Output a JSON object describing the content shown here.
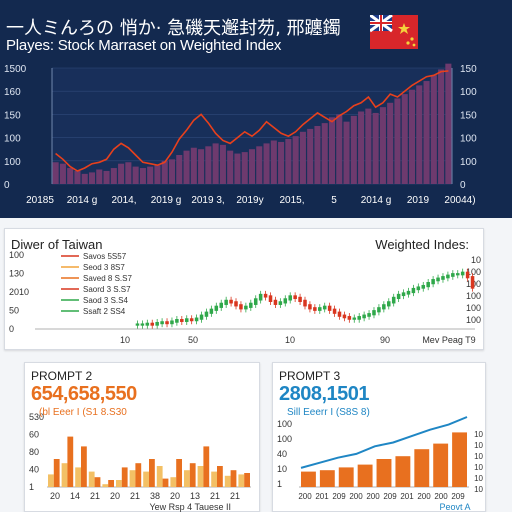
{
  "hero": {
    "title": "一人ミんろの 悄か· 急磯天邂封芴, 邢躔鐲",
    "subtitle": "Playes: Stock Marraset on Weighted Index",
    "axis_left": [
      "1500",
      "160",
      "150",
      "100",
      "100",
      "0"
    ],
    "axis_right": [
      "150",
      "100",
      "150",
      "100",
      "100",
      "0"
    ],
    "x_labels": [
      "20185",
      "2014 g",
      "2014,",
      "2019 g",
      "2019 3,",
      "2019y",
      "2015,",
      "5",
      "2014 g",
      "2019",
      "20044)"
    ]
  },
  "mid": {
    "left_title": "Diwer of Taiwan",
    "right_title": "Weighted Indes:",
    "axis_left": [
      "100",
      "130",
      "2010",
      "50",
      "0"
    ],
    "legend": [
      "Savos 5S57",
      "Seod 3 8S7",
      "Saved 8 S.S7",
      "Saord 3 S.S7",
      "Saod 3 S.S4",
      "Ssaft 2 SS4"
    ],
    "x_labels": [
      "10",
      "50",
      "10",
      "90",
      "Mev Peag T9"
    ],
    "axis_right": [
      "10",
      "100",
      "100",
      "100",
      "100",
      "100"
    ]
  },
  "card_left": {
    "title": "PROMPT 2",
    "number": "654,658,550",
    "sub": "(bl Eeer I (S1 8.S30",
    "axis": [
      "530",
      "60",
      "80",
      "40",
      "1"
    ],
    "x_labels": [
      "20",
      "14",
      "21",
      "20",
      "21",
      "38",
      "20",
      "13",
      "21",
      "21"
    ],
    "footer": "Yew Rsp 4 Tauese II"
  },
  "card_right": {
    "title": "PROMPT 3",
    "number": "2808,1501",
    "sub": "Sill Eeerr I (S8S 8)",
    "axis": [
      "100",
      "100",
      "40",
      "10",
      "1"
    ],
    "x_labels": [
      "200",
      "201",
      "209",
      "200",
      "200",
      "209",
      "201",
      "200",
      "200",
      "209"
    ],
    "footer": "Peovt A",
    "axis_right": [
      "10",
      "10",
      "10",
      "10",
      "10",
      "10"
    ]
  },
  "colors": {
    "navy": "#13294f",
    "red_line": "#e8401c",
    "bar_purple": "#6e3a6e",
    "candle_up": "#2fa84a",
    "candle_down": "#d9361f",
    "orange": "#e8701f",
    "light_orange": "#f3c065",
    "blue": "#1f86c4"
  },
  "chart_data": [
    {
      "type": "bar",
      "title": "Playes: Stock Marraset on Weighted Index",
      "ylim": [
        0,
        160
      ],
      "values": [
        30,
        28,
        22,
        18,
        14,
        16,
        20,
        18,
        22,
        28,
        30,
        24,
        22,
        24,
        26,
        32,
        34,
        40,
        46,
        50,
        48,
        52,
        56,
        54,
        46,
        42,
        44,
        48,
        52,
        56,
        60,
        58,
        62,
        66,
        72,
        76,
        80,
        84,
        92,
        96,
        86,
        94,
        100,
        104,
        98,
        106,
        112,
        118,
        124,
        130,
        136,
        142,
        150,
        158,
        166
      ],
      "series": [
        {
          "type": "line",
          "values": [
            42,
            34,
            24,
            18,
            22,
            28,
            30,
            34,
            48,
            56,
            50,
            40,
            30,
            28,
            26,
            30,
            44,
            62,
            74,
            88,
            96,
            84,
            70,
            60,
            56,
            64,
            72,
            66,
            74,
            86,
            78,
            70,
            66,
            72,
            82,
            90,
            98,
            92,
            86,
            94,
            100,
            108,
            112,
            120,
            106,
            112,
            124,
            120,
            128,
            136,
            142,
            148,
            150,
            155,
            156
          ]
        }
      ]
    },
    {
      "type": "line",
      "title": "Diwer of Taiwan",
      "ylim": [
        0,
        100
      ],
      "values": [
        6,
        6,
        7,
        6,
        8,
        9,
        8,
        10,
        12,
        11,
        13,
        12,
        14,
        18,
        22,
        26,
        30,
        34,
        38,
        36,
        32,
        28,
        30,
        34,
        40,
        46,
        44,
        38,
        34,
        36,
        40,
        44,
        42,
        38,
        32,
        28,
        26,
        28,
        30,
        26,
        22,
        18,
        16,
        14,
        14,
        16,
        18,
        20,
        24,
        28,
        32,
        36,
        42,
        46,
        48,
        50,
        54,
        56,
        58,
        62,
        66,
        68,
        70,
        72,
        74,
        74,
        76,
        70,
        56
      ]
    },
    {
      "type": "bar",
      "title": "PROMPT 2",
      "ylim": [
        0,
        100
      ],
      "series": [
        {
          "values": [
            18,
            34,
            28,
            22,
            4,
            10,
            24,
            22,
            30,
            14,
            24,
            30,
            22,
            16,
            18
          ]
        },
        {
          "values": [
            40,
            72,
            58,
            14,
            10,
            28,
            34,
            40,
            12,
            40,
            34,
            58,
            30,
            24,
            20
          ]
        }
      ]
    },
    {
      "type": "bar",
      "title": "PROMPT 3",
      "ylim": [
        0,
        100
      ],
      "values": [
        22,
        24,
        28,
        32,
        40,
        44,
        54,
        62,
        78
      ],
      "series": [
        {
          "type": "line",
          "values": [
            30,
            38,
            46,
            52,
            64,
            70,
            80,
            90,
            98,
            110
          ]
        }
      ]
    }
  ]
}
